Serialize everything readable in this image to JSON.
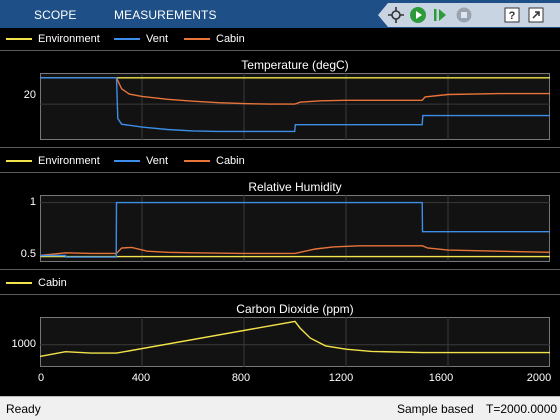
{
  "toolbar": {
    "tabs": [
      "SCOPE",
      "MEASUREMENTS"
    ],
    "buttons": [
      "cursor-probe-icon",
      "run-icon",
      "step-forward-icon",
      "stop-icon",
      "help-icon",
      "undock-icon"
    ]
  },
  "colors": {
    "environment": "#f2e34a",
    "vent": "#3d8ee8",
    "cabin": "#e8743a",
    "toolbar": "#1e4f86"
  },
  "legends": {
    "temp": [
      "Environment",
      "Vent",
      "Cabin"
    ],
    "humidity": [
      "Environment",
      "Vent",
      "Cabin"
    ],
    "co2": [
      "Cabin"
    ]
  },
  "panels": {
    "temp": {
      "title": "Temperature (degC)",
      "yticks": [
        "20"
      ]
    },
    "humidity": {
      "title": "Relative Humidity",
      "yticks": [
        "1",
        "0.5"
      ]
    },
    "co2": {
      "title": "Carbon Dioxide (ppm)",
      "yticks": [
        "1000"
      ]
    }
  },
  "xaxis": {
    "ticks": [
      "0",
      "400",
      "800",
      "1200",
      "1600",
      "2000"
    ]
  },
  "status": {
    "left": "Ready",
    "mode": "Sample based",
    "time": "T=2000.0000"
  },
  "chart_data": [
    {
      "type": "line",
      "title": "Temperature (degC)",
      "xlim": [
        0,
        2000
      ],
      "ylim": [
        12.5,
        26.5
      ],
      "series": [
        {
          "name": "Environment",
          "x": [
            0,
            2000
          ],
          "y": [
            25.5,
            25.5
          ]
        },
        {
          "name": "Vent",
          "x": [
            0,
            300,
            305,
            320,
            400,
            500,
            600,
            700,
            800,
            999,
            1001,
            1499,
            1501,
            2000
          ],
          "y": [
            25.5,
            25.5,
            17,
            15.8,
            15.2,
            14.7,
            14.4,
            14.3,
            14.3,
            14.3,
            15.7,
            15.7,
            17.6,
            17.6
          ]
        },
        {
          "name": "Cabin",
          "x": [
            0,
            300,
            320,
            350,
            400,
            500,
            600,
            700,
            800,
            900,
            999,
            1020,
            1100,
            1200,
            1300,
            1499,
            1510,
            1600,
            1800,
            2000
          ],
          "y": [
            25.5,
            25.5,
            23.2,
            22.1,
            21.6,
            21.0,
            20.6,
            20.3,
            20.1,
            20.0,
            20.0,
            20.4,
            20.7,
            20.8,
            20.8,
            20.8,
            21.5,
            22.0,
            22.2,
            22.2
          ]
        }
      ]
    },
    {
      "type": "line",
      "title": "Relative Humidity",
      "xlim": [
        0,
        2000
      ],
      "ylim": [
        0.45,
        1.07
      ],
      "series": [
        {
          "name": "Environment",
          "x": [
            0,
            2000
          ],
          "y": [
            0.5,
            0.5
          ]
        },
        {
          "name": "Vent",
          "x": [
            0,
            100,
            101,
            299,
            300,
            1499,
            1500,
            2000
          ],
          "y": [
            0.51,
            0.51,
            0.495,
            0.495,
            1.0,
            1.0,
            0.73,
            0.73
          ]
        },
        {
          "name": "Cabin",
          "x": [
            0,
            100,
            200,
            300,
            320,
            360,
            420,
            500,
            600,
            800,
            1000,
            1080,
            1150,
            1250,
            1400,
            1500,
            1520,
            1600,
            1800,
            2000
          ],
          "y": [
            0.51,
            0.535,
            0.53,
            0.53,
            0.58,
            0.585,
            0.55,
            0.54,
            0.535,
            0.53,
            0.53,
            0.57,
            0.59,
            0.6,
            0.6,
            0.6,
            0.58,
            0.56,
            0.55,
            0.54
          ]
        }
      ]
    },
    {
      "type": "line",
      "title": "Carbon Dioxide (ppm)",
      "xlim": [
        0,
        2000
      ],
      "ylim": [
        600,
        1500
      ],
      "series": [
        {
          "name": "Cabin",
          "x": [
            0,
            100,
            200,
            300,
            1000,
            1020,
            1060,
            1120,
            1200,
            1300,
            1400,
            1500,
            1700,
            2000
          ],
          "y": [
            790,
            875,
            850,
            850,
            1420,
            1300,
            1120,
            980,
            920,
            880,
            870,
            860,
            860,
            860
          ]
        }
      ]
    }
  ]
}
